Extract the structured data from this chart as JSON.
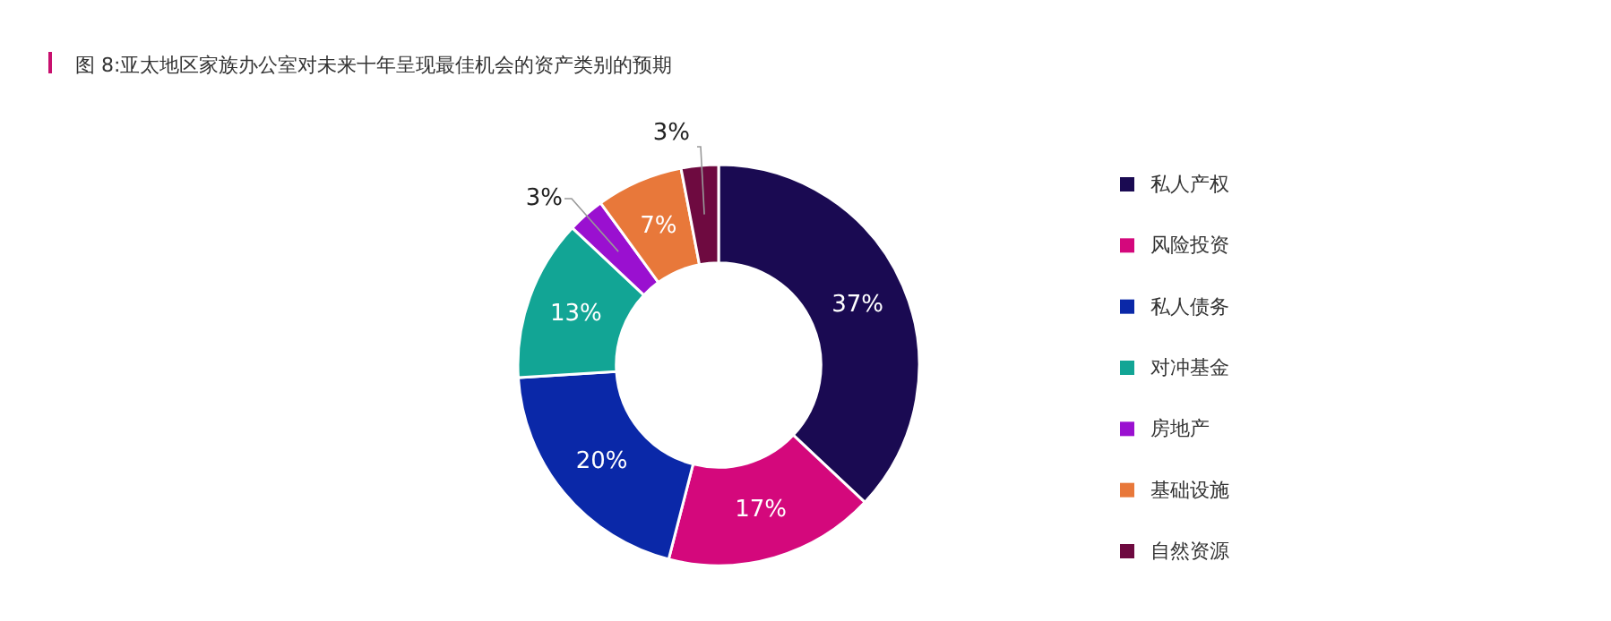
{
  "chart_data": {
    "type": "donut",
    "title": "图 8:亚太地区家族办公室对未来十年呈现最佳机会的资产类别的预期",
    "categories": [
      "私人产权",
      "风险投资",
      "私人债务",
      "对冲基金",
      "房地产",
      "基础设施",
      "自然资源"
    ],
    "values": [
      37,
      17,
      20,
      13,
      3,
      7,
      3
    ],
    "colors": [
      "#1a0a52",
      "#d4087c",
      "#0a28a8",
      "#12a595",
      "#9a10d0",
      "#e8783a",
      "#6e0a40"
    ],
    "value_labels": [
      "37%",
      "17%",
      "20%",
      "13%",
      "3%",
      "7%",
      "3%"
    ],
    "legend": "right"
  }
}
